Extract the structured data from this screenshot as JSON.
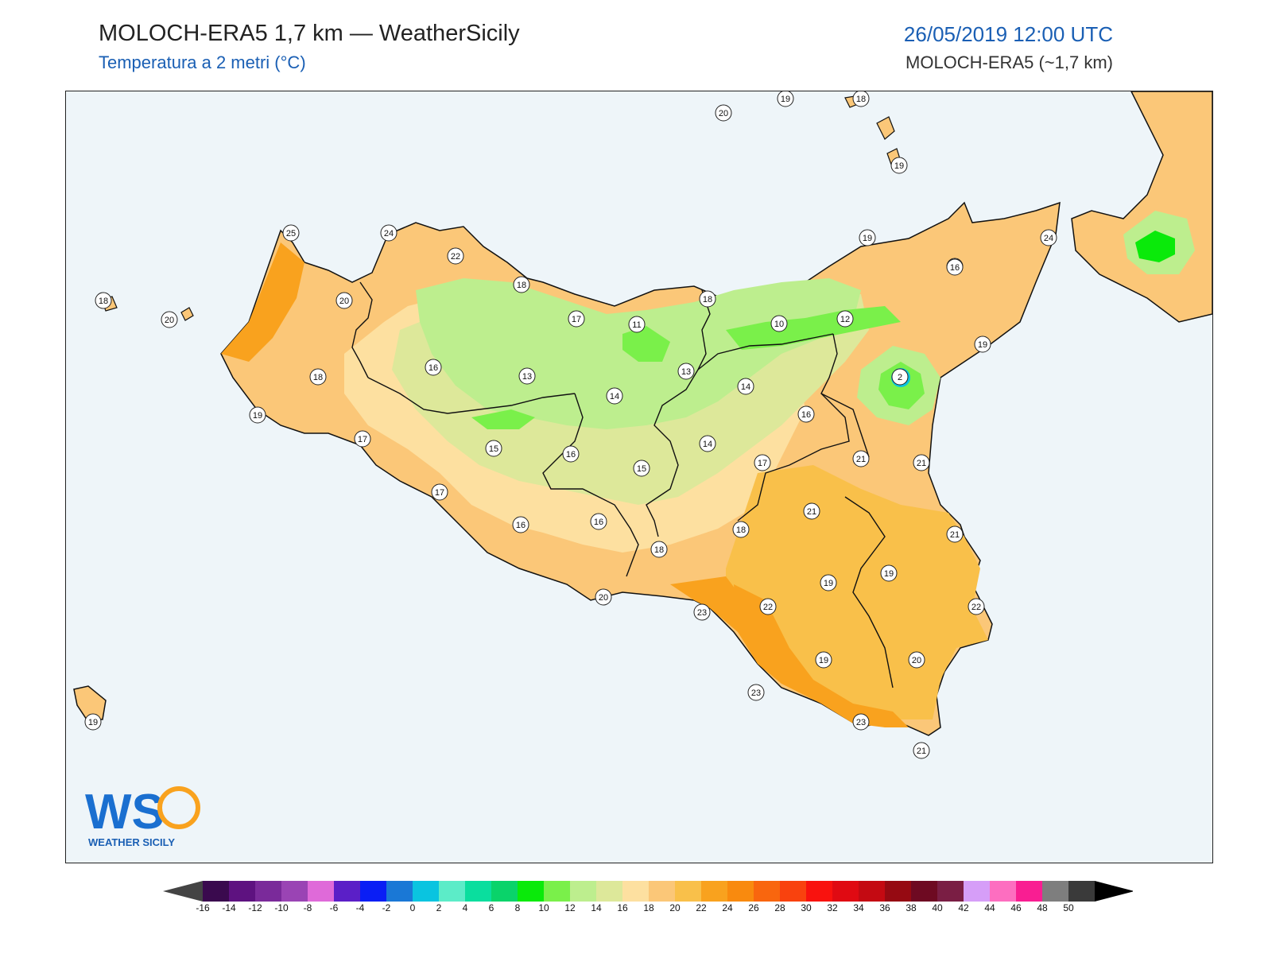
{
  "header": {
    "title": "MOLOCH-ERA5 1,7 km — WeatherSicily",
    "subtitle": "Temperatura a 2 metri (°C)",
    "datetime": "26/05/2019 12:00 UTC",
    "model": "MOLOCH-ERA5 (~1,7 km)"
  },
  "logo": {
    "text": "WEATHER SICILY",
    "mark": "WS"
  },
  "colorbar": {
    "ticks": [
      "-16",
      "-14",
      "-12",
      "-10",
      "-8",
      "-6",
      "-4",
      "-2",
      "0",
      "2",
      "4",
      "6",
      "8",
      "10",
      "12",
      "14",
      "16",
      "18",
      "20",
      "22",
      "24",
      "26",
      "28",
      "30",
      "32",
      "34",
      "36",
      "38",
      "40",
      "42",
      "44",
      "46",
      "48",
      "50"
    ],
    "colors": [
      "#3a0a4e",
      "#5e1280",
      "#7a2a9a",
      "#9a44b4",
      "#df6ad9",
      "#5b1fc7",
      "#0a1ef5",
      "#1a78d6",
      "#0ac4e0",
      "#5cecc8",
      "#0ade9e",
      "#0ad36a",
      "#0aea0a",
      "#7af04a",
      "#bdee8e",
      "#dde89a",
      "#fde0a0",
      "#fbc778",
      "#f9c04a",
      "#f9a21e",
      "#f98a0e",
      "#f9660e",
      "#f9420e",
      "#f9120e",
      "#e00a12",
      "#c40a12",
      "#960a12",
      "#6e0a22",
      "#7a1e44",
      "#d69ef8",
      "#fd6ec0",
      "#f91e92",
      "#7e7e7e",
      "#3a3a3a"
    ]
  },
  "stations": [
    {
      "v": "20"
    },
    {
      "v": "19"
    },
    {
      "v": "18"
    },
    {
      "v": "19"
    },
    {
      "v": "25"
    },
    {
      "v": "24"
    },
    {
      "v": "22"
    },
    {
      "v": "18"
    },
    {
      "v": "24"
    },
    {
      "v": "20"
    },
    {
      "v": "18"
    },
    {
      "v": "20"
    },
    {
      "v": "18"
    },
    {
      "v": "19"
    },
    {
      "v": "17"
    },
    {
      "v": "16"
    },
    {
      "v": "13"
    },
    {
      "v": "17"
    },
    {
      "v": "11"
    },
    {
      "v": "13"
    },
    {
      "v": "14"
    },
    {
      "v": "15"
    },
    {
      "v": "16"
    },
    {
      "v": "15"
    },
    {
      "v": "17"
    },
    {
      "v": "16"
    },
    {
      "v": "16"
    },
    {
      "v": "20"
    },
    {
      "v": "18"
    },
    {
      "v": "18"
    },
    {
      "v": "10"
    },
    {
      "v": "12"
    },
    {
      "v": "19"
    },
    {
      "v": "16"
    },
    {
      "v": "24"
    },
    {
      "v": "14"
    },
    {
      "v": "2"
    },
    {
      "v": "16"
    },
    {
      "v": "19"
    },
    {
      "v": "14"
    },
    {
      "v": "17"
    },
    {
      "v": "21"
    },
    {
      "v": "21"
    },
    {
      "v": "21"
    },
    {
      "v": "18"
    },
    {
      "v": "21"
    },
    {
      "v": "19"
    },
    {
      "v": "19"
    },
    {
      "v": "23"
    },
    {
      "v": "22"
    },
    {
      "v": "22"
    },
    {
      "v": "19"
    },
    {
      "v": "20"
    },
    {
      "v": "23"
    },
    {
      "v": "23"
    },
    {
      "v": "21"
    },
    {
      "v": "19"
    }
  ]
}
